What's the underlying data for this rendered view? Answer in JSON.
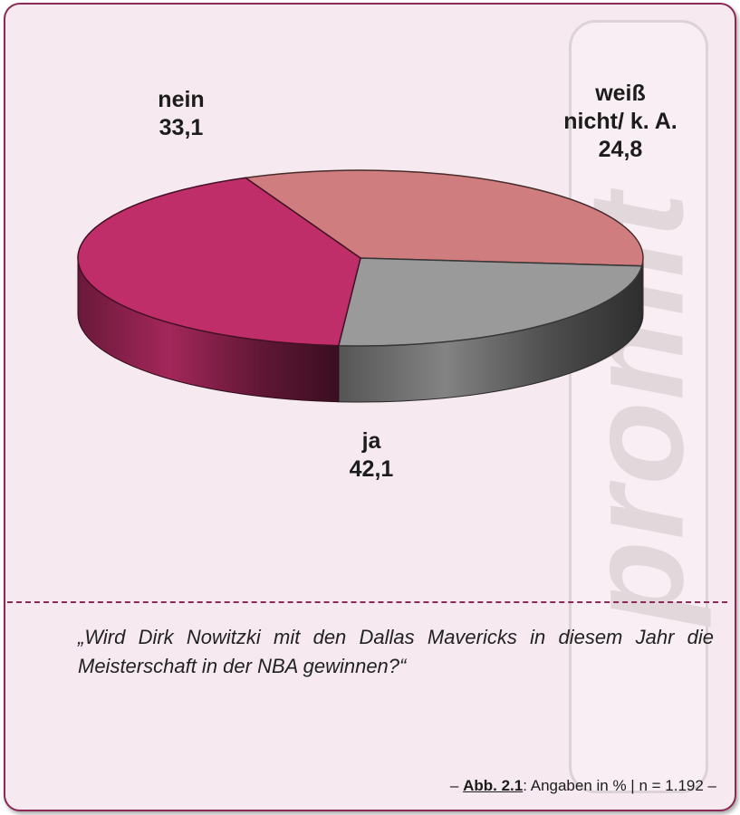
{
  "watermark": "promit",
  "question": "„Wird Dirk Nowitzki mit den Dallas Mavericks in diesem Jahr die Meisterschaft in der NBA gewinnen?“",
  "footer": {
    "dash_left": "–",
    "ref": "Abb. 2.1",
    "text": ": Angaben in % | n = 1.192 –"
  },
  "chart_data": {
    "type": "pie",
    "title": "",
    "unit": "%",
    "slices": [
      {
        "label_lines": [
          "nein"
        ],
        "value": 33.1,
        "value_text": "33,1",
        "color": "#cf7d7e"
      },
      {
        "label_lines": [
          "weiß",
          "nicht/ k. A."
        ],
        "value": 24.8,
        "value_text": "24,8",
        "color": "#9a9a9a"
      },
      {
        "label_lines": [
          "ja"
        ],
        "value": 42.1,
        "value_text": "42,1",
        "color": "#c02e6a"
      }
    ]
  }
}
